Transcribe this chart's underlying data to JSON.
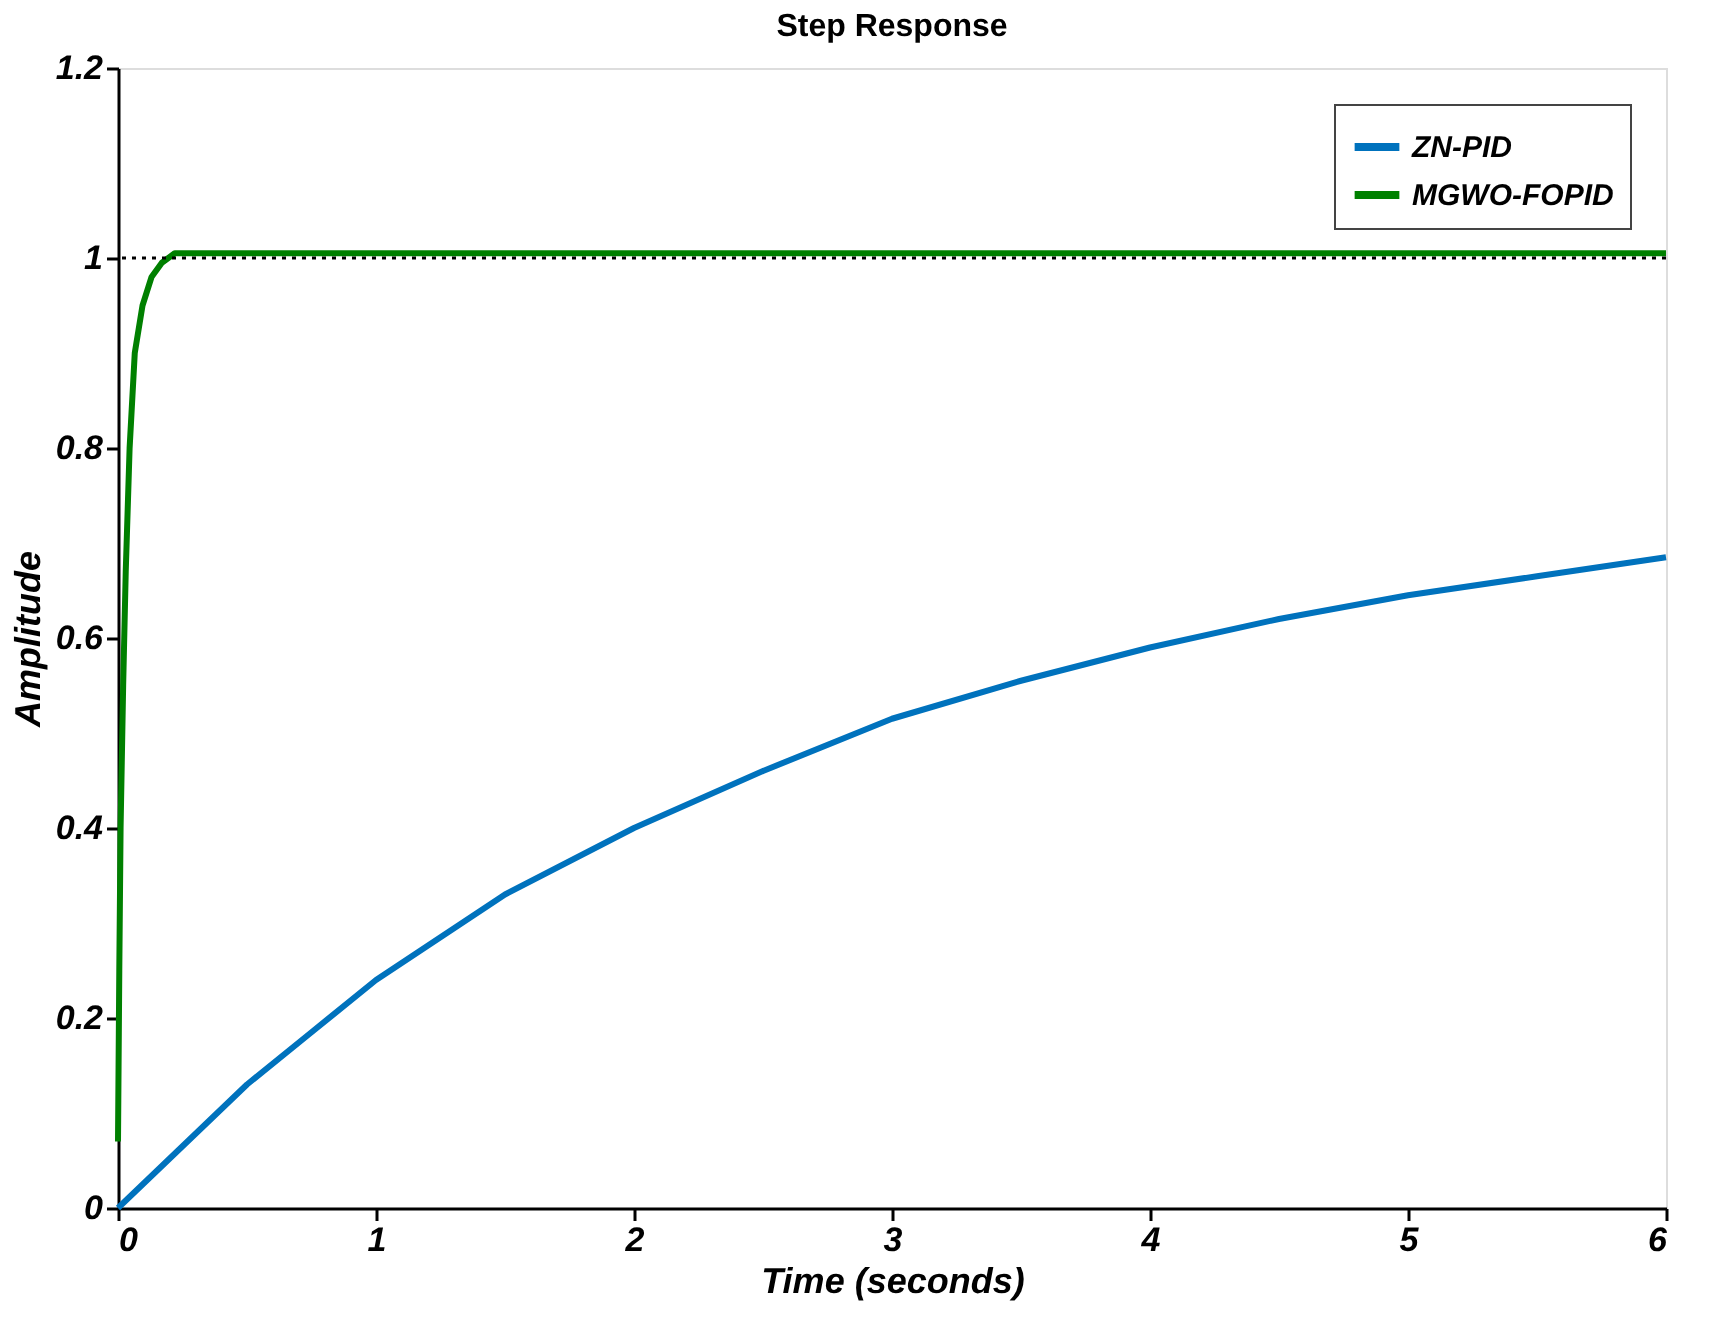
{
  "chart_data": {
    "type": "line",
    "title": "Step Response",
    "xlabel": "Time (seconds)",
    "ylabel": "Amplitude",
    "xlim": [
      0,
      6
    ],
    "xticks": [
      0,
      1,
      2,
      3,
      4,
      5,
      6
    ],
    "ylim": [
      0,
      1.2
    ],
    "yticks": [
      0,
      0.2,
      0.4,
      0.6,
      0.8,
      1,
      1.2
    ],
    "grid": false,
    "legend": "top right",
    "line_style": "solid",
    "marker": "none",
    "ref_lines": [
      {
        "axis": "y",
        "value": 1,
        "color": "#000000",
        "line_style": "dotted"
      }
    ],
    "series": [
      {
        "name": "ZN-PID",
        "color": "#0072bd",
        "x": [
          0,
          0.25,
          0.5,
          0.75,
          1,
          1.5,
          2,
          2.5,
          3,
          3.5,
          4,
          4.5,
          5,
          5.5,
          6
        ],
        "values": [
          0,
          0.065,
          0.13,
          0.185,
          0.24,
          0.33,
          0.4,
          0.46,
          0.515,
          0.555,
          0.59,
          0.62,
          0.645,
          0.665,
          0.685
        ]
      },
      {
        "name": "MGWO-FOPID",
        "color": "#008000",
        "x": [
          0,
          0.005,
          0.01,
          0.02,
          0.03,
          0.045,
          0.065,
          0.095,
          0.13,
          0.17,
          0.22,
          1,
          2,
          3,
          4,
          5,
          6
        ],
        "values": [
          0.07,
          0.25,
          0.4,
          0.55,
          0.67,
          0.8,
          0.9,
          0.95,
          0.98,
          0.995,
          1.005,
          1.005,
          1.005,
          1.005,
          1.005,
          1.005,
          1.005
        ]
      }
    ]
  }
}
